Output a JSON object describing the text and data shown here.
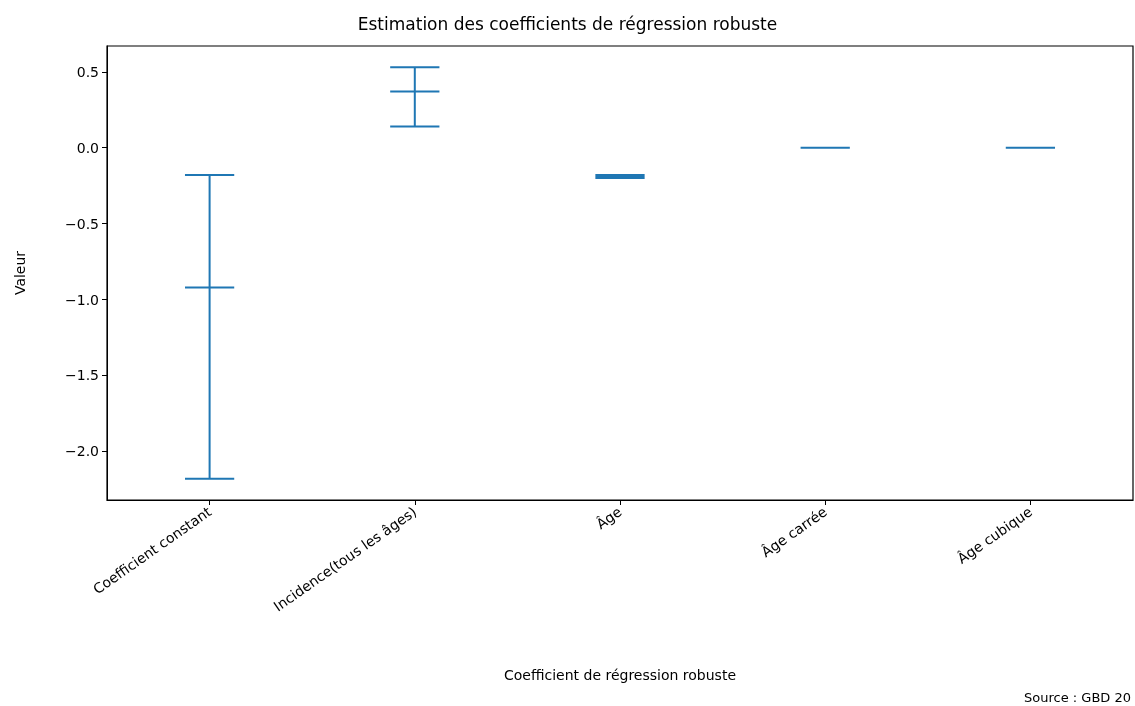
{
  "chart_data": {
    "type": "box",
    "title": "Estimation des coefficients de régression robuste",
    "xlabel": "Coefficient de régression robuste",
    "ylabel": "Valeur",
    "categories": [
      "Coefficient constant",
      "Incidence(tous les âges)",
      "Âge",
      "Âge carrée",
      "Âge cubique"
    ],
    "color": "#1f77b4",
    "boxes": [
      {
        "low": -2.18,
        "q1": -0.92,
        "median": -0.92,
        "q3": -0.92,
        "high": -0.18
      },
      {
        "low": 0.14,
        "q1": 0.37,
        "median": 0.37,
        "q3": 0.37,
        "high": 0.53
      },
      {
        "low": -0.2,
        "q1": -0.19,
        "median": -0.19,
        "q3": -0.19,
        "high": -0.18
      },
      {
        "low": 0,
        "q1": 0,
        "median": 0,
        "q3": 0,
        "high": 0
      },
      {
        "low": 0,
        "q1": 0,
        "median": 0,
        "q3": 0,
        "high": 0
      }
    ],
    "ylim": [
      -2.32,
      0.67
    ],
    "yticks": [
      {
        "value": -2,
        "label": "−2.0"
      },
      {
        "value": -1.5,
        "label": "−1.5"
      },
      {
        "value": -1,
        "label": "−1.0"
      },
      {
        "value": -0.5,
        "label": "−0.5"
      },
      {
        "value": 0,
        "label": "0.0"
      },
      {
        "value": 0.5,
        "label": "0.5"
      }
    ],
    "grid": false,
    "annotations": [
      "Source : GBD 20"
    ]
  }
}
